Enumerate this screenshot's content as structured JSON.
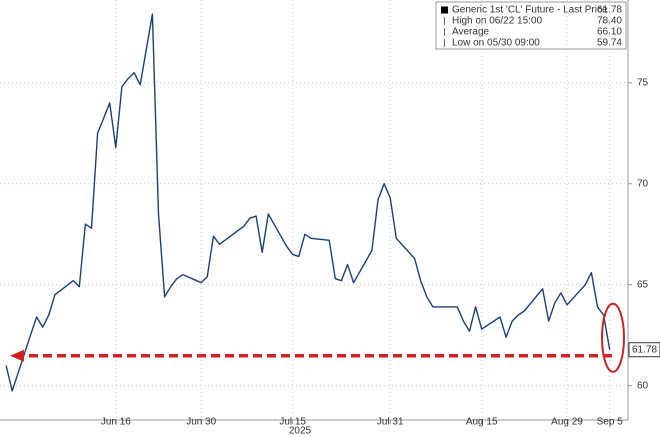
{
  "chart_data": {
    "type": "line",
    "x": [
      "2025-05-29",
      "2025-05-30",
      "2025-06-02",
      "2025-06-03",
      "2025-06-04",
      "2025-06-05",
      "2025-06-06",
      "2025-06-09",
      "2025-06-10",
      "2025-06-11",
      "2025-06-12",
      "2025-06-13",
      "2025-06-15",
      "2025-06-16",
      "2025-06-17",
      "2025-06-18",
      "2025-06-19",
      "2025-06-20",
      "2025-06-22",
      "2025-06-23",
      "2025-06-24",
      "2025-06-25",
      "2025-06-26",
      "2025-06-27",
      "2025-06-30",
      "2025-07-01",
      "2025-07-02",
      "2025-07-03",
      "2025-07-07",
      "2025-07-08",
      "2025-07-09",
      "2025-07-10",
      "2025-07-11",
      "2025-07-14",
      "2025-07-15",
      "2025-07-16",
      "2025-07-17",
      "2025-07-18",
      "2025-07-21",
      "2025-07-22",
      "2025-07-23",
      "2025-07-24",
      "2025-07-25",
      "2025-07-28",
      "2025-07-29",
      "2025-07-30",
      "2025-07-31",
      "2025-08-01",
      "2025-08-04",
      "2025-08-05",
      "2025-08-06",
      "2025-08-07",
      "2025-08-08",
      "2025-08-11",
      "2025-08-12",
      "2025-08-13",
      "2025-08-14",
      "2025-08-15",
      "2025-08-18",
      "2025-08-19",
      "2025-08-20",
      "2025-08-21",
      "2025-08-22",
      "2025-08-25",
      "2025-08-26",
      "2025-08-27",
      "2025-08-28",
      "2025-08-29",
      "2025-09-01",
      "2025-09-02",
      "2025-09-03",
      "2025-09-04",
      "2025-09-05"
    ],
    "series": [
      {
        "name": "Generic 1st 'CL' Future - Last Price",
        "color": "#1a3f7a",
        "values": [
          61.0,
          59.74,
          62.5,
          63.4,
          62.9,
          63.5,
          64.5,
          65.2,
          64.9,
          68.0,
          67.8,
          72.5,
          74.0,
          71.8,
          74.8,
          75.2,
          75.5,
          74.9,
          78.4,
          68.5,
          64.4,
          64.9,
          65.3,
          65.5,
          65.1,
          65.4,
          67.4,
          67.0,
          67.9,
          68.3,
          68.4,
          66.6,
          68.5,
          66.9,
          66.5,
          66.4,
          67.5,
          67.3,
          67.2,
          65.3,
          65.2,
          66.0,
          65.1,
          66.7,
          69.2,
          70.0,
          69.3,
          67.3,
          66.3,
          65.2,
          64.4,
          63.9,
          63.9,
          63.9,
          63.2,
          62.7,
          63.9,
          62.8,
          63.4,
          62.4,
          63.2,
          63.5,
          63.7,
          64.8,
          63.2,
          64.1,
          64.6,
          64.0,
          65.0,
          65.6,
          63.9,
          63.5,
          61.78
        ]
      }
    ],
    "legend": [
      {
        "name": "Generic 1st 'CL' Future - Last Price",
        "value": 61.78
      },
      {
        "name": "High on 06/22 15:00",
        "value": 78.4,
        "value_label": "78.40"
      },
      {
        "name": "Average",
        "value": 66.1,
        "value_label": "66.10"
      },
      {
        "name": "Low on 05/30 09:00",
        "value": 59.74
      }
    ],
    "xlabel": "2025",
    "xlim": [
      "2025-05-28",
      "2025-09-08"
    ],
    "xticks": [
      {
        "value": "2025-06-16",
        "label": "Jun 16"
      },
      {
        "value": "2025-06-30",
        "label": "Jun 30"
      },
      {
        "value": "2025-07-15",
        "label": "Jul 15"
      },
      {
        "value": "2025-07-31",
        "label": "Jul 31"
      },
      {
        "value": "2025-08-15",
        "label": "Aug 15"
      },
      {
        "value": "2025-08-29",
        "label": "Aug 29"
      },
      {
        "value": "2025-09-05",
        "label": "Sep 5"
      }
    ],
    "ylim": [
      58.3,
      79.1
    ],
    "yticks": [
      60,
      65,
      70,
      75
    ],
    "grid": true
  }
}
